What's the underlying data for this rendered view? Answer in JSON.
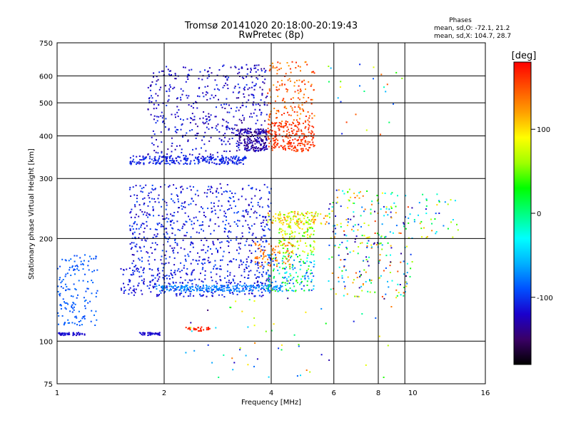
{
  "chart_data": {
    "type": "scatter",
    "title": "Tromsø 20141020 20:18:00-20:19:43",
    "subtitle": "RwPretec (8p)",
    "xlabel": "Frequency [MHz]",
    "ylabel": "Stationary phase Virtual Height [km]",
    "x_scale": "log",
    "y_scale": "log",
    "xlim": [
      1,
      16
    ],
    "ylim": [
      75,
      750
    ],
    "x_ticks": [
      1,
      2,
      4,
      6,
      8,
      10,
      16
    ],
    "y_ticks": [
      75,
      100,
      200,
      300,
      400,
      500,
      600,
      750
    ],
    "x_gridlines": [
      2,
      4,
      6,
      8,
      9.5
    ],
    "y_gridlines": [
      100,
      200,
      300,
      400,
      500,
      600
    ],
    "grid": true,
    "stats": {
      "header": "Phases",
      "line_o": "mean, sd,O: -72.1, 21.2",
      "line_x": "mean, sd,X: 104.7, 28.7"
    },
    "colorbar": {
      "label": "[deg]",
      "min": -180,
      "max": 180,
      "ticks": [
        100,
        0,
        -100
      ],
      "colors": [
        "#000000",
        "#3a0066",
        "#1a00cc",
        "#0050ff",
        "#00b0ff",
        "#00ffff",
        "#00ff80",
        "#00ff00",
        "#a0ff00",
        "#ffff00",
        "#ffa000",
        "#ff5000",
        "#ff0000"
      ]
    },
    "clusters": [
      {
        "x": [
          1.6,
          3.4
        ],
        "y": [
          330,
          350
        ],
        "phase": [
          -120,
          -95
        ],
        "n": 260
      },
      {
        "x": [
          1.8,
          2.9
        ],
        "y": [
          350,
          640
        ],
        "phase": [
          -135,
          -100
        ],
        "n": 260
      },
      {
        "x": [
          2.9,
          3.9
        ],
        "y": [
          360,
          650
        ],
        "phase": [
          -140,
          -100
        ],
        "n": 220
      },
      {
        "x": [
          3.2,
          3.9
        ],
        "y": [
          360,
          420
        ],
        "phase": [
          -150,
          -115
        ],
        "n": 180
      },
      {
        "x": [
          3.9,
          5.3
        ],
        "y": [
          360,
          440
        ],
        "phase": [
          150,
          170
        ],
        "n": 240
      },
      {
        "x": [
          3.9,
          5.3
        ],
        "y": [
          440,
          660
        ],
        "phase": [
          120,
          170
        ],
        "n": 150
      },
      {
        "x": [
          1.6,
          4.0
        ],
        "y": [
          165,
          290
        ],
        "phase": [
          -130,
          -90
        ],
        "n": 600
      },
      {
        "x": [
          1.5,
          4.0
        ],
        "y": [
          135,
          165
        ],
        "phase": [
          -125,
          -95
        ],
        "n": 320
      },
      {
        "x": [
          1.0,
          1.3
        ],
        "y": [
          110,
          180
        ],
        "phase": [
          -95,
          -80
        ],
        "n": 150
      },
      {
        "x": [
          1.0,
          1.2
        ],
        "y": [
          104,
          106
        ],
        "phase": [
          -125,
          -110
        ],
        "n": 50
      },
      {
        "x": [
          1.7,
          2.0
        ],
        "y": [
          104,
          106
        ],
        "phase": [
          -125,
          -110
        ],
        "n": 40
      },
      {
        "x": [
          1.9,
          4.3
        ],
        "y": [
          140,
          146
        ],
        "phase": [
          -85,
          -65
        ],
        "n": 220
      },
      {
        "x": [
          3.9,
          5.3
        ],
        "y": [
          140,
          180
        ],
        "phase": [
          -110,
          60
        ],
        "n": 160
      },
      {
        "x": [
          4.2,
          5.3
        ],
        "y": [
          180,
          240
        ],
        "phase": [
          30,
          110
        ],
        "n": 160
      },
      {
        "x": [
          3.9,
          5.8
        ],
        "y": [
          220,
          240
        ],
        "phase": [
          60,
          140
        ],
        "n": 80
      },
      {
        "x": [
          2.3,
          2.7
        ],
        "y": [
          107,
          110
        ],
        "phase": [
          165,
          170
        ],
        "n": 30
      },
      {
        "x": [
          3.6,
          4.6
        ],
        "y": [
          165,
          195
        ],
        "phase": [
          120,
          150
        ],
        "n": 70
      },
      {
        "x": [
          5.8,
          10.0
        ],
        "y": [
          135,
          280
        ],
        "phase": [
          -150,
          160
        ],
        "n": 280
      },
      {
        "x": [
          10.0,
          13.5
        ],
        "y": [
          200,
          270
        ],
        "phase": [
          -130,
          130
        ],
        "n": 40
      },
      {
        "x": [
          5.5,
          9.5
        ],
        "y": [
          400,
          660
        ],
        "phase": [
          -130,
          170
        ],
        "n": 25
      },
      {
        "x": [
          2.3,
          9.0
        ],
        "y": [
          78,
          135
        ],
        "phase": [
          -150,
          150
        ],
        "n": 60
      }
    ]
  }
}
